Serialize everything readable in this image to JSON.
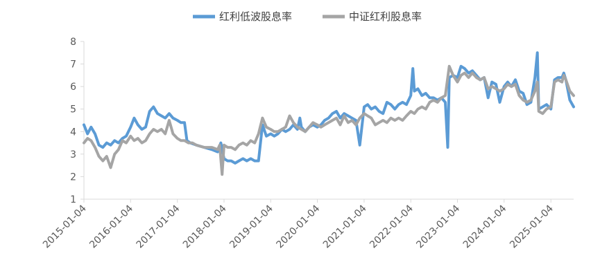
{
  "chart_data": {
    "type": "line",
    "title": "",
    "xlabel": "",
    "ylabel": "",
    "ylim": [
      1,
      8
    ],
    "yticks": [
      1,
      2,
      3,
      4,
      5,
      6,
      7,
      8
    ],
    "xlim": [
      "2015-01-04",
      "2025-07-01"
    ],
    "xticks": [
      "2015-01-04",
      "2016-01-04",
      "2017-01-04",
      "2018-01-04",
      "2019-01-04",
      "2020-01-04",
      "2021-01-04",
      "2022-01-04",
      "2023-01-04",
      "2024-01-04",
      "2025-01-04"
    ],
    "grid": false,
    "legend": "top-center",
    "series": [
      {
        "name": "红利低波股息率",
        "color": "#5b9bd5",
        "points": [
          [
            "2015-01-04",
            4.3
          ],
          [
            "2015-02-01",
            3.9
          ],
          [
            "2015-03-01",
            4.2
          ],
          [
            "2015-04-01",
            3.9
          ],
          [
            "2015-05-01",
            3.4
          ],
          [
            "2015-06-01",
            3.3
          ],
          [
            "2015-07-01",
            3.5
          ],
          [
            "2015-08-01",
            3.4
          ],
          [
            "2015-09-01",
            3.6
          ],
          [
            "2015-10-01",
            3.5
          ],
          [
            "2015-11-01",
            3.7
          ],
          [
            "2015-12-01",
            3.8
          ],
          [
            "2016-01-04",
            4.2
          ],
          [
            "2016-02-01",
            4.6
          ],
          [
            "2016-03-01",
            4.3
          ],
          [
            "2016-04-01",
            4.1
          ],
          [
            "2016-05-01",
            4.2
          ],
          [
            "2016-06-01",
            4.9
          ],
          [
            "2016-07-01",
            5.1
          ],
          [
            "2016-08-01",
            4.8
          ],
          [
            "2016-09-01",
            4.7
          ],
          [
            "2016-10-01",
            4.6
          ],
          [
            "2016-11-01",
            4.8
          ],
          [
            "2016-12-01",
            4.6
          ],
          [
            "2017-01-04",
            4.5
          ],
          [
            "2017-02-01",
            4.4
          ],
          [
            "2017-03-01",
            4.4
          ],
          [
            "2017-03-20",
            3.6
          ],
          [
            "2017-04-15",
            3.5
          ],
          [
            "2017-06-01",
            3.4
          ],
          [
            "2017-08-01",
            3.3
          ],
          [
            "2017-10-01",
            3.2
          ],
          [
            "2017-11-15",
            3.1
          ],
          [
            "2017-12-10",
            3.5
          ],
          [
            "2018-01-04",
            2.8
          ],
          [
            "2018-02-01",
            2.7
          ],
          [
            "2018-03-01",
            2.7
          ],
          [
            "2018-04-01",
            2.6
          ],
          [
            "2018-05-01",
            2.7
          ],
          [
            "2018-06-01",
            2.8
          ],
          [
            "2018-07-01",
            2.7
          ],
          [
            "2018-08-01",
            2.8
          ],
          [
            "2018-09-01",
            2.7
          ],
          [
            "2018-10-01",
            2.7
          ],
          [
            "2018-11-01",
            4.3
          ],
          [
            "2018-12-01",
            3.8
          ],
          [
            "2019-01-04",
            3.9
          ],
          [
            "2019-02-01",
            3.8
          ],
          [
            "2019-03-01",
            3.9
          ],
          [
            "2019-04-01",
            4.1
          ],
          [
            "2019-05-01",
            4.0
          ],
          [
            "2019-06-01",
            4.1
          ],
          [
            "2019-07-01",
            4.3
          ],
          [
            "2019-08-01",
            4.1
          ],
          [
            "2019-08-20",
            4.6
          ],
          [
            "2019-09-01",
            4.2
          ],
          [
            "2019-10-01",
            4.0
          ],
          [
            "2019-11-01",
            4.2
          ],
          [
            "2019-12-01",
            4.3
          ],
          [
            "2020-01-04",
            4.2
          ],
          [
            "2020-02-01",
            4.3
          ],
          [
            "2020-03-01",
            4.5
          ],
          [
            "2020-04-01",
            4.6
          ],
          [
            "2020-05-01",
            4.8
          ],
          [
            "2020-06-01",
            4.9
          ],
          [
            "2020-07-01",
            4.6
          ],
          [
            "2020-08-01",
            4.8
          ],
          [
            "2020-09-01",
            4.7
          ],
          [
            "2020-10-01",
            4.6
          ],
          [
            "2020-11-01",
            4.5
          ],
          [
            "2020-12-01",
            3.4
          ],
          [
            "2021-01-04",
            5.1
          ],
          [
            "2021-02-01",
            5.2
          ],
          [
            "2021-03-01",
            5.0
          ],
          [
            "2021-04-01",
            5.1
          ],
          [
            "2021-05-01",
            4.9
          ],
          [
            "2021-06-01",
            4.8
          ],
          [
            "2021-07-01",
            5.3
          ],
          [
            "2021-08-01",
            5.2
          ],
          [
            "2021-09-01",
            5.0
          ],
          [
            "2021-10-01",
            5.2
          ],
          [
            "2021-11-01",
            5.3
          ],
          [
            "2021-12-01",
            5.2
          ],
          [
            "2022-01-04",
            5.6
          ],
          [
            "2022-01-20",
            6.8
          ],
          [
            "2022-02-01",
            5.8
          ],
          [
            "2022-03-01",
            5.9
          ],
          [
            "2022-04-01",
            5.6
          ],
          [
            "2022-05-01",
            5.7
          ],
          [
            "2022-06-01",
            5.5
          ],
          [
            "2022-07-01",
            5.5
          ],
          [
            "2022-08-01",
            5.4
          ],
          [
            "2022-09-01",
            5.5
          ],
          [
            "2022-10-01",
            5.3
          ],
          [
            "2022-10-20",
            3.3
          ],
          [
            "2022-11-01",
            6.4
          ],
          [
            "2022-12-01",
            6.5
          ],
          [
            "2023-01-04",
            6.4
          ],
          [
            "2023-02-01",
            6.9
          ],
          [
            "2023-03-01",
            6.8
          ],
          [
            "2023-04-01",
            6.6
          ],
          [
            "2023-05-01",
            6.7
          ],
          [
            "2023-06-01",
            6.5
          ],
          [
            "2023-07-01",
            6.3
          ],
          [
            "2023-08-01",
            6.4
          ],
          [
            "2023-09-01",
            5.5
          ],
          [
            "2023-10-01",
            6.2
          ],
          [
            "2023-11-01",
            6.1
          ],
          [
            "2023-12-01",
            5.3
          ],
          [
            "2024-01-04",
            6.0
          ],
          [
            "2024-02-01",
            6.2
          ],
          [
            "2024-03-01",
            6.0
          ],
          [
            "2024-04-01",
            6.3
          ],
          [
            "2024-05-01",
            5.8
          ],
          [
            "2024-06-01",
            5.7
          ],
          [
            "2024-07-01",
            5.2
          ],
          [
            "2024-08-01",
            5.3
          ],
          [
            "2024-09-01",
            6.4
          ],
          [
            "2024-09-20",
            7.5
          ],
          [
            "2024-10-01",
            5.0
          ],
          [
            "2024-11-01",
            5.1
          ],
          [
            "2024-12-01",
            5.2
          ],
          [
            "2025-01-04",
            5.0
          ],
          [
            "2025-02-01",
            6.3
          ],
          [
            "2025-03-01",
            6.4
          ],
          [
            "2025-04-01",
            6.4
          ],
          [
            "2025-04-15",
            6.6
          ],
          [
            "2025-05-01",
            6.3
          ],
          [
            "2025-06-01",
            5.4
          ],
          [
            "2025-07-01",
            5.1
          ]
        ]
      },
      {
        "name": "中证红利股息率",
        "color": "#a5a5a5",
        "points": [
          [
            "2015-01-04",
            3.5
          ],
          [
            "2015-02-01",
            3.7
          ],
          [
            "2015-03-01",
            3.6
          ],
          [
            "2015-04-01",
            3.3
          ],
          [
            "2015-05-01",
            2.9
          ],
          [
            "2015-06-01",
            2.7
          ],
          [
            "2015-07-01",
            2.9
          ],
          [
            "2015-08-01",
            2.4
          ],
          [
            "2015-09-01",
            3.0
          ],
          [
            "2015-10-01",
            3.2
          ],
          [
            "2015-11-01",
            3.6
          ],
          [
            "2015-12-01",
            3.5
          ],
          [
            "2016-01-04",
            3.8
          ],
          [
            "2016-02-01",
            3.6
          ],
          [
            "2016-03-01",
            3.7
          ],
          [
            "2016-04-01",
            3.5
          ],
          [
            "2016-05-01",
            3.6
          ],
          [
            "2016-06-01",
            3.9
          ],
          [
            "2016-07-01",
            4.1
          ],
          [
            "2016-08-01",
            4.0
          ],
          [
            "2016-09-01",
            4.1
          ],
          [
            "2016-10-01",
            3.9
          ],
          [
            "2016-11-01",
            4.5
          ],
          [
            "2016-12-01",
            3.9
          ],
          [
            "2017-01-04",
            3.7
          ],
          [
            "2017-02-01",
            3.6
          ],
          [
            "2017-03-01",
            3.6
          ],
          [
            "2017-04-01",
            3.5
          ],
          [
            "2017-05-01",
            3.5
          ],
          [
            "2017-06-01",
            3.4
          ],
          [
            "2017-08-01",
            3.3
          ],
          [
            "2017-10-01",
            3.3
          ],
          [
            "2017-11-15",
            3.2
          ],
          [
            "2017-12-01",
            3.4
          ],
          [
            "2017-12-20",
            2.1
          ],
          [
            "2018-01-04",
            3.4
          ],
          [
            "2018-02-01",
            3.3
          ],
          [
            "2018-03-01",
            3.3
          ],
          [
            "2018-04-01",
            3.2
          ],
          [
            "2018-05-01",
            3.4
          ],
          [
            "2018-06-01",
            3.5
          ],
          [
            "2018-07-01",
            3.4
          ],
          [
            "2018-08-01",
            3.6
          ],
          [
            "2018-09-01",
            3.5
          ],
          [
            "2018-10-01",
            3.9
          ],
          [
            "2018-11-01",
            4.6
          ],
          [
            "2018-12-01",
            4.2
          ],
          [
            "2019-01-04",
            4.1
          ],
          [
            "2019-02-01",
            4.0
          ],
          [
            "2019-03-01",
            4.0
          ],
          [
            "2019-04-01",
            4.1
          ],
          [
            "2019-05-01",
            4.2
          ],
          [
            "2019-06-01",
            4.7
          ],
          [
            "2019-07-01",
            4.4
          ],
          [
            "2019-08-01",
            4.2
          ],
          [
            "2019-09-01",
            4.1
          ],
          [
            "2019-10-01",
            4.0
          ],
          [
            "2019-11-01",
            4.2
          ],
          [
            "2019-12-01",
            4.4
          ],
          [
            "2020-01-04",
            4.3
          ],
          [
            "2020-02-01",
            4.2
          ],
          [
            "2020-03-01",
            4.3
          ],
          [
            "2020-04-01",
            4.4
          ],
          [
            "2020-05-01",
            4.5
          ],
          [
            "2020-06-01",
            4.6
          ],
          [
            "2020-07-01",
            4.3
          ],
          [
            "2020-08-01",
            4.7
          ],
          [
            "2020-09-01",
            4.4
          ],
          [
            "2020-10-01",
            4.5
          ],
          [
            "2020-11-01",
            4.3
          ],
          [
            "2020-12-01",
            4.6
          ],
          [
            "2021-01-04",
            4.8
          ],
          [
            "2021-02-01",
            4.7
          ],
          [
            "2021-03-01",
            4.6
          ],
          [
            "2021-04-01",
            4.3
          ],
          [
            "2021-05-01",
            4.4
          ],
          [
            "2021-06-01",
            4.5
          ],
          [
            "2021-07-01",
            4.4
          ],
          [
            "2021-08-01",
            4.6
          ],
          [
            "2021-09-01",
            4.5
          ],
          [
            "2021-10-01",
            4.6
          ],
          [
            "2021-11-01",
            4.5
          ],
          [
            "2021-12-01",
            4.7
          ],
          [
            "2022-01-04",
            4.9
          ],
          [
            "2022-02-01",
            4.8
          ],
          [
            "2022-03-01",
            5.0
          ],
          [
            "2022-04-01",
            5.1
          ],
          [
            "2022-05-01",
            5.0
          ],
          [
            "2022-06-01",
            5.3
          ],
          [
            "2022-07-01",
            5.4
          ],
          [
            "2022-08-01",
            5.3
          ],
          [
            "2022-09-01",
            5.5
          ],
          [
            "2022-10-01",
            5.6
          ],
          [
            "2022-11-01",
            6.9
          ],
          [
            "2022-12-01",
            6.5
          ],
          [
            "2023-01-04",
            6.2
          ],
          [
            "2023-02-01",
            6.5
          ],
          [
            "2023-03-01",
            6.6
          ],
          [
            "2023-04-01",
            6.4
          ],
          [
            "2023-05-01",
            6.6
          ],
          [
            "2023-06-01",
            6.4
          ],
          [
            "2023-07-01",
            6.3
          ],
          [
            "2023-08-01",
            6.4
          ],
          [
            "2023-09-01",
            5.9
          ],
          [
            "2023-10-01",
            6.0
          ],
          [
            "2023-11-01",
            5.9
          ],
          [
            "2023-12-01",
            5.8
          ],
          [
            "2024-01-04",
            5.9
          ],
          [
            "2024-02-01",
            6.1
          ],
          [
            "2024-03-01",
            6.0
          ],
          [
            "2024-04-01",
            6.1
          ],
          [
            "2024-05-01",
            5.6
          ],
          [
            "2024-06-01",
            5.4
          ],
          [
            "2024-07-01",
            5.3
          ],
          [
            "2024-08-01",
            5.4
          ],
          [
            "2024-09-01",
            5.8
          ],
          [
            "2024-09-20",
            6.2
          ],
          [
            "2024-10-01",
            4.9
          ],
          [
            "2024-11-01",
            4.8
          ],
          [
            "2024-12-01",
            5.0
          ],
          [
            "2025-01-04",
            5.1
          ],
          [
            "2025-02-01",
            6.2
          ],
          [
            "2025-03-01",
            6.3
          ],
          [
            "2025-04-01",
            6.2
          ],
          [
            "2025-04-15",
            6.5
          ],
          [
            "2025-05-01",
            6.3
          ],
          [
            "2025-06-01",
            5.8
          ],
          [
            "2025-07-01",
            5.6
          ]
        ]
      }
    ]
  }
}
